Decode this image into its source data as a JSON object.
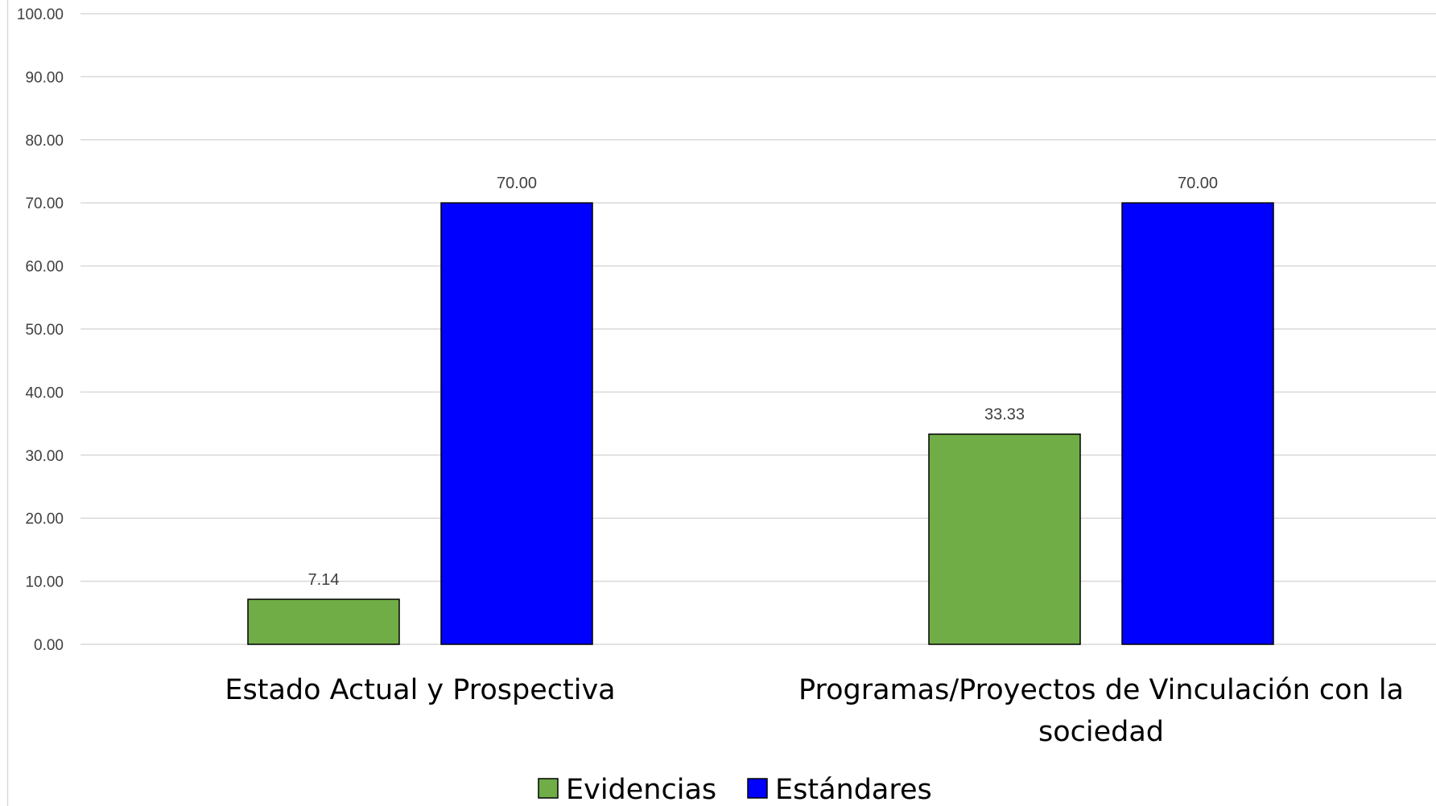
{
  "chart_data": {
    "type": "bar",
    "categories": [
      [
        "Estado Actual y Prospectiva"
      ],
      [
        "Programas/Proyectos de Vinculación con la",
        "sociedad"
      ]
    ],
    "series": [
      {
        "name": "Evidencias",
        "values": [
          7.14,
          33.33
        ],
        "color": "#70AD47"
      },
      {
        "name": "Estándares",
        "values": [
          70.0,
          70.0
        ],
        "color": "#0000FF"
      }
    ],
    "data_labels": [
      [
        "7.14",
        "33.33"
      ],
      [
        "70.00",
        "70.00"
      ]
    ],
    "y_ticks": [
      "0.00",
      "10.00",
      "20.00",
      "30.00",
      "40.00",
      "50.00",
      "60.00",
      "70.00",
      "80.00",
      "90.00",
      "100.00"
    ],
    "ylim": [
      0,
      100
    ],
    "grid": true,
    "legend_position": "bottom",
    "title": "",
    "xlabel": "",
    "ylabel": ""
  }
}
